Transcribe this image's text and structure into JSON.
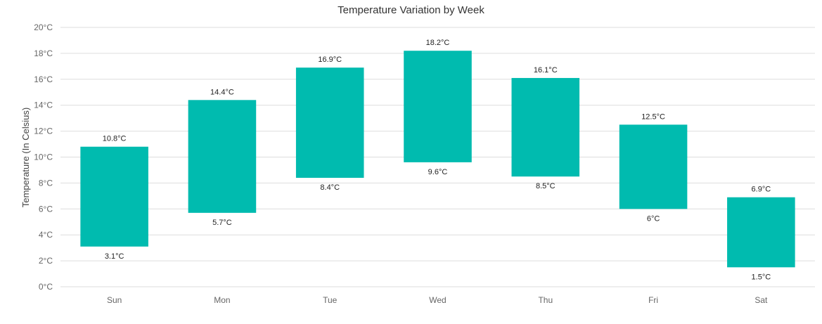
{
  "chart_data": {
    "type": "bar",
    "subtype": "range-bar",
    "title": "Temperature Variation by Week",
    "xlabel": "",
    "ylabel": "Temperature (In Celsius)",
    "unit_suffix": "°C",
    "categories": [
      "Sun",
      "Mon",
      "Tue",
      "Wed",
      "Thu",
      "Fri",
      "Sat"
    ],
    "series": [
      {
        "low": [
          3.1,
          5.7,
          8.4,
          9.6,
          8.5,
          6,
          1.5
        ],
        "high": [
          10.8,
          14.4,
          16.9,
          18.2,
          16.1,
          12.5,
          6.9
        ]
      }
    ],
    "ylim": [
      0,
      20
    ],
    "yticks": [
      0,
      2,
      4,
      6,
      8,
      10,
      12,
      14,
      16,
      18,
      20
    ],
    "ytick_labels": [
      "0°C",
      "2°C",
      "4°C",
      "6°C",
      "8°C",
      "10°C",
      "12°C",
      "14°C",
      "16°C",
      "18°C",
      "20°C"
    ],
    "low_labels": [
      "3.1°C",
      "5.7°C",
      "8.4°C",
      "9.6°C",
      "8.5°C",
      "6°C",
      "1.5°C"
    ],
    "high_labels": [
      "10.8°C",
      "14.4°C",
      "16.9°C",
      "18.2°C",
      "16.1°C",
      "12.5°C",
      "6.9°C"
    ],
    "grid": true,
    "legend": "none",
    "bar_color": "#00BBAF",
    "grid_color": "#DDDDDD"
  }
}
